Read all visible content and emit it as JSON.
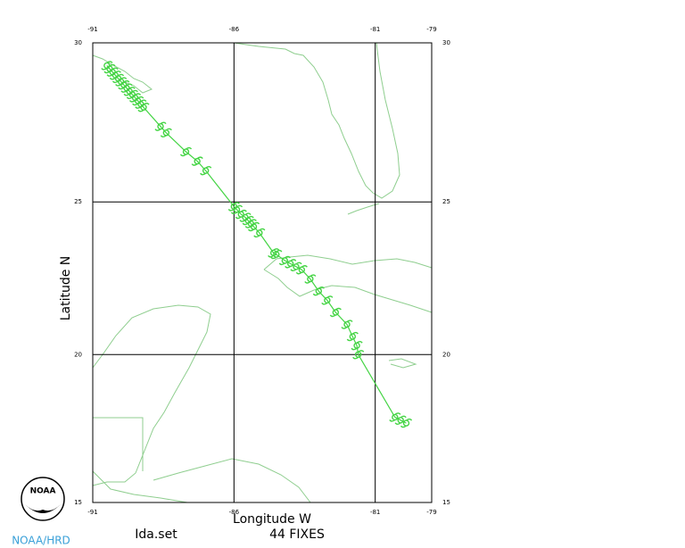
{
  "chart_data": {
    "type": "track",
    "projection": "mercator",
    "xlabel": "Longitude W",
    "ylabel": "Latitude N",
    "annotations": [
      "Ida.set",
      "44 FIXES",
      "NOAA/HRD"
    ],
    "logo_text": "NOAA",
    "xlim": [
      -91,
      -79
    ],
    "xticks": [
      -91,
      -86,
      -81,
      -79
    ],
    "ylim": [
      15,
      30
    ],
    "yticks": [
      15,
      20,
      25,
      30
    ],
    "grid": true,
    "color": "#44d444",
    "x": [
      -79.9,
      -80.1,
      -80.3,
      -81.6,
      -81.65,
      -81.8,
      -82.0,
      -82.4,
      -82.7,
      -83.0,
      -83.3,
      -83.6,
      -83.8,
      -84.0,
      -84.2,
      -84.5,
      -84.6,
      -85.1,
      -85.3,
      -85.4,
      -85.5,
      -85.6,
      -85.75,
      -85.9,
      -86.0,
      -87.0,
      -87.3,
      -87.7,
      -88.4,
      -88.6,
      -89.2,
      -89.3,
      -89.4,
      -89.5,
      -89.6,
      -89.7,
      -89.8,
      -89.9,
      -90.0,
      -90.1,
      -90.2,
      -90.3,
      -90.4,
      -90.5
    ],
    "y": [
      17.7,
      17.8,
      17.9,
      20.0,
      20.3,
      20.6,
      21.0,
      21.4,
      21.8,
      22.1,
      22.5,
      22.8,
      22.9,
      23.0,
      23.1,
      23.3,
      23.35,
      24.0,
      24.2,
      24.3,
      24.4,
      24.5,
      24.6,
      24.75,
      24.85,
      26.0,
      26.3,
      26.6,
      27.2,
      27.4,
      28.0,
      28.1,
      28.2,
      28.3,
      28.4,
      28.5,
      28.6,
      28.7,
      28.8,
      28.9,
      29.0,
      29.1,
      29.2,
      29.3
    ]
  }
}
